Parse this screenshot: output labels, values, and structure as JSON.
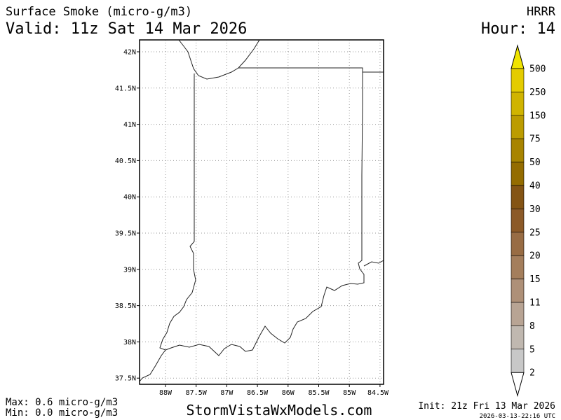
{
  "header": {
    "title": "Surface Smoke (micro-g/m3)",
    "valid": "Valid: 11z Sat 14 Mar 2026",
    "model": "HRRR",
    "hour": "Hour: 14"
  },
  "map": {
    "lat_ticks": [
      {
        "value": 42,
        "label": "42N"
      },
      {
        "value": 41.5,
        "label": "41.5N"
      },
      {
        "value": 41,
        "label": "41N"
      },
      {
        "value": 40.5,
        "label": "40.5N"
      },
      {
        "value": 40,
        "label": "40N"
      },
      {
        "value": 39.5,
        "label": "39.5N"
      },
      {
        "value": 39,
        "label": "39N"
      },
      {
        "value": 38.5,
        "label": "38.5N"
      },
      {
        "value": 38,
        "label": "38N"
      },
      {
        "value": 37.5,
        "label": "37.5N"
      }
    ],
    "lon_ticks": [
      {
        "value": -88,
        "label": "88W"
      },
      {
        "value": -87.5,
        "label": "87.5W"
      },
      {
        "value": -87,
        "label": "87W"
      },
      {
        "value": -86.5,
        "label": "86.5W"
      },
      {
        "value": -86,
        "label": "86W"
      },
      {
        "value": -85.5,
        "label": "85.5W"
      },
      {
        "value": -85,
        "label": "85W"
      },
      {
        "value": -84.5,
        "label": "84.5W"
      }
    ]
  },
  "colorbar": {
    "levels": [
      500,
      250,
      150,
      75,
      50,
      40,
      30,
      25,
      20,
      15,
      11,
      8,
      5,
      2
    ],
    "colors": [
      "#f0e400",
      "#e4cc00",
      "#d0b400",
      "#bc9c00",
      "#a88400",
      "#946c00",
      "#845414",
      "#8c5a28",
      "#986c44",
      "#a47e5c",
      "#ae9078",
      "#b8a494",
      "#c0b8b0",
      "#c8c8c8",
      "#ffffff"
    ]
  },
  "footer": {
    "max": "Max: 0.6 micro-g/m3",
    "min": "Min: 0.0 micro-g/m3",
    "site": "StormVistaWxModels.com",
    "init": "Init: 21z Fri 13 Mar 2026",
    "stamp": "2026-03-13-22:16 UTC"
  }
}
